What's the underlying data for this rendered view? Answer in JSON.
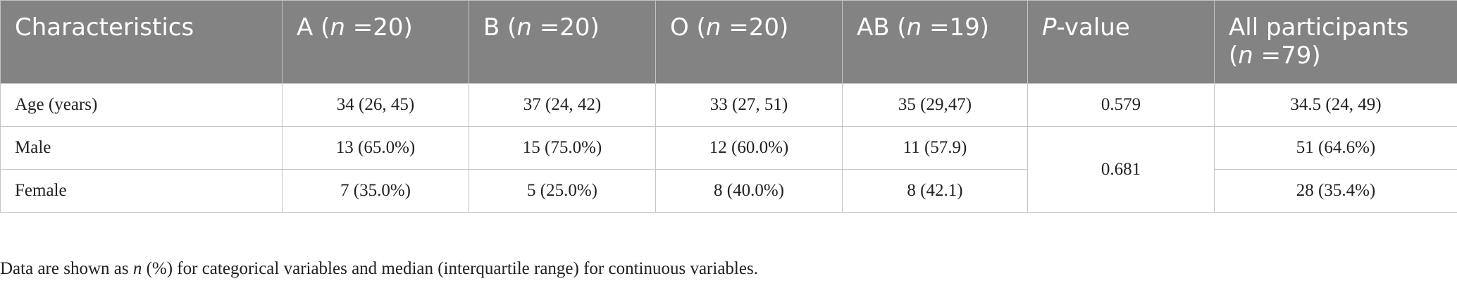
{
  "table": {
    "headers": [
      {
        "text": "Characteristics"
      },
      {
        "prefix": "A (",
        "n": "n",
        "suffix": " =20)"
      },
      {
        "prefix": "B (",
        "n": "n",
        "suffix": " =20)"
      },
      {
        "prefix": "O (",
        "n": "n",
        "suffix": " =20)"
      },
      {
        "prefix": "AB (",
        "n": "n",
        "suffix": " =19)"
      },
      {
        "p": "P",
        "suffix": "-value"
      },
      {
        "line1": "All participants",
        "prefix2": "(",
        "n": "n",
        "suffix2": " =79)"
      }
    ],
    "rows": [
      {
        "label": "Age (years)",
        "a": "34 (26, 45)",
        "b": "37 (24, 42)",
        "o": "33 (27, 51)",
        "ab": "35 (29,47)",
        "p": "0.579",
        "all": "34.5 (24, 49)"
      },
      {
        "label": "Male",
        "a": "13 (65.0%)",
        "b": "15 (75.0%)",
        "o": "12 (60.0%)",
        "ab": "11 (57.9)",
        "p": "0.681",
        "all": "51 (64.6%)"
      },
      {
        "label": "Female",
        "a": "7 (35.0%)",
        "b": "5 (25.0%)",
        "o": "8 (40.0%)",
        "ab": "8 (42.1)",
        "all": "28 (35.4%)"
      }
    ]
  },
  "footnote": {
    "prefix": "Data are shown as ",
    "n": "n",
    "suffix": " (%) for categorical variables and median (interquartile range) for continuous variables."
  }
}
